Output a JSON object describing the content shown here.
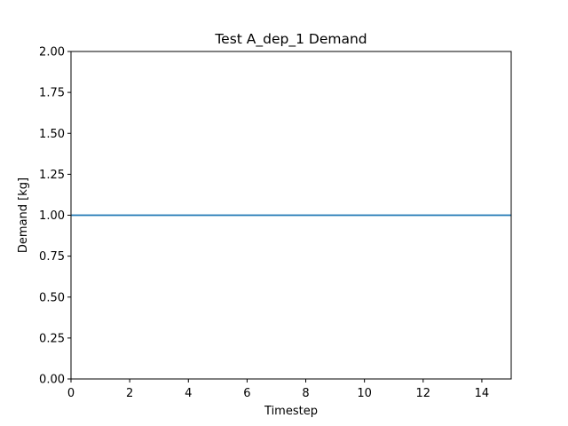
{
  "chart_data": {
    "type": "line",
    "title": "Test A_dep_1 Demand",
    "xlabel": "Timestep",
    "ylabel": "Demand [kg]",
    "xlim": [
      0,
      15
    ],
    "ylim": [
      0,
      2
    ],
    "x_ticks": [
      0,
      2,
      4,
      6,
      8,
      10,
      12,
      14
    ],
    "x_tick_labels": [
      "0",
      "2",
      "4",
      "6",
      "8",
      "10",
      "12",
      "14"
    ],
    "y_ticks": [
      0,
      0.25,
      0.5,
      0.75,
      1.0,
      1.25,
      1.5,
      1.75,
      2.0
    ],
    "y_tick_labels": [
      "0.00",
      "0.25",
      "0.50",
      "0.75",
      "1.00",
      "1.25",
      "1.50",
      "1.75",
      "2.00"
    ],
    "grid": false,
    "legend": "none",
    "series": [
      {
        "color": "#1f77b4",
        "x": [
          0,
          1,
          2,
          3,
          4,
          5,
          6,
          7,
          8,
          9,
          10,
          11,
          12,
          13,
          14,
          15
        ],
        "values": [
          1,
          1,
          1,
          1,
          1,
          1,
          1,
          1,
          1,
          1,
          1,
          1,
          1,
          1,
          1,
          1
        ]
      }
    ]
  }
}
